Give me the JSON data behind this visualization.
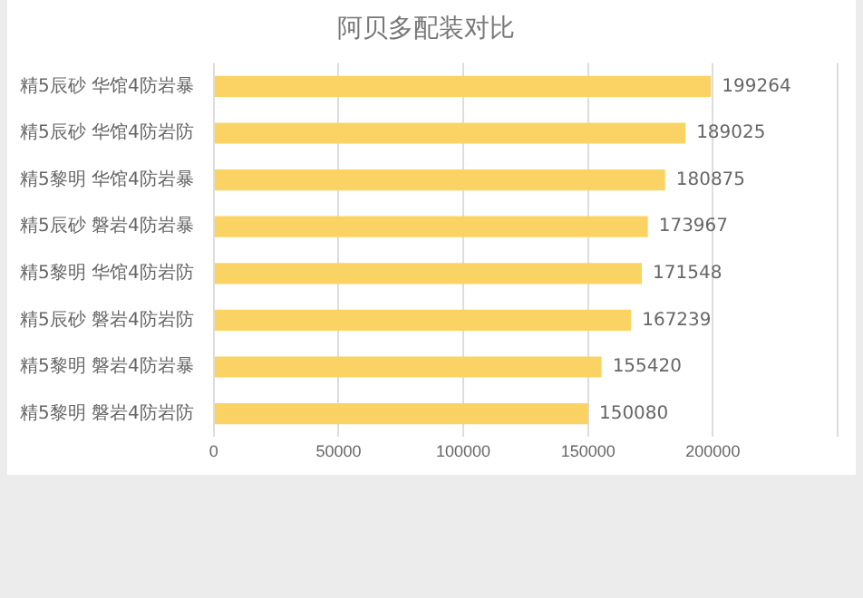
{
  "chart_data": {
    "type": "bar",
    "orientation": "horizontal",
    "title": "阿贝多配装对比",
    "categories": [
      "精5辰砂 华馆4防岩暴",
      "精5辰砂 华馆4防岩防",
      "精5黎明 华馆4防岩暴",
      "精5辰砂 磐岩4防岩暴",
      "精5黎明 华馆4防岩防",
      "精5辰砂 磐岩4防岩防",
      "精5黎明 磐岩4防岩暴",
      "精5黎明 磐岩4防岩防"
    ],
    "values": [
      199264,
      189025,
      180875,
      173967,
      171548,
      167239,
      155420,
      150080
    ],
    "color": "#fbd364",
    "xlim": [
      0,
      250000
    ],
    "xticks": [
      0,
      50000,
      100000,
      150000,
      200000,
      {
        "value": 250000,
        "label": null
      }
    ],
    "grid": "x",
    "data_labels": true,
    "legend": false
  }
}
